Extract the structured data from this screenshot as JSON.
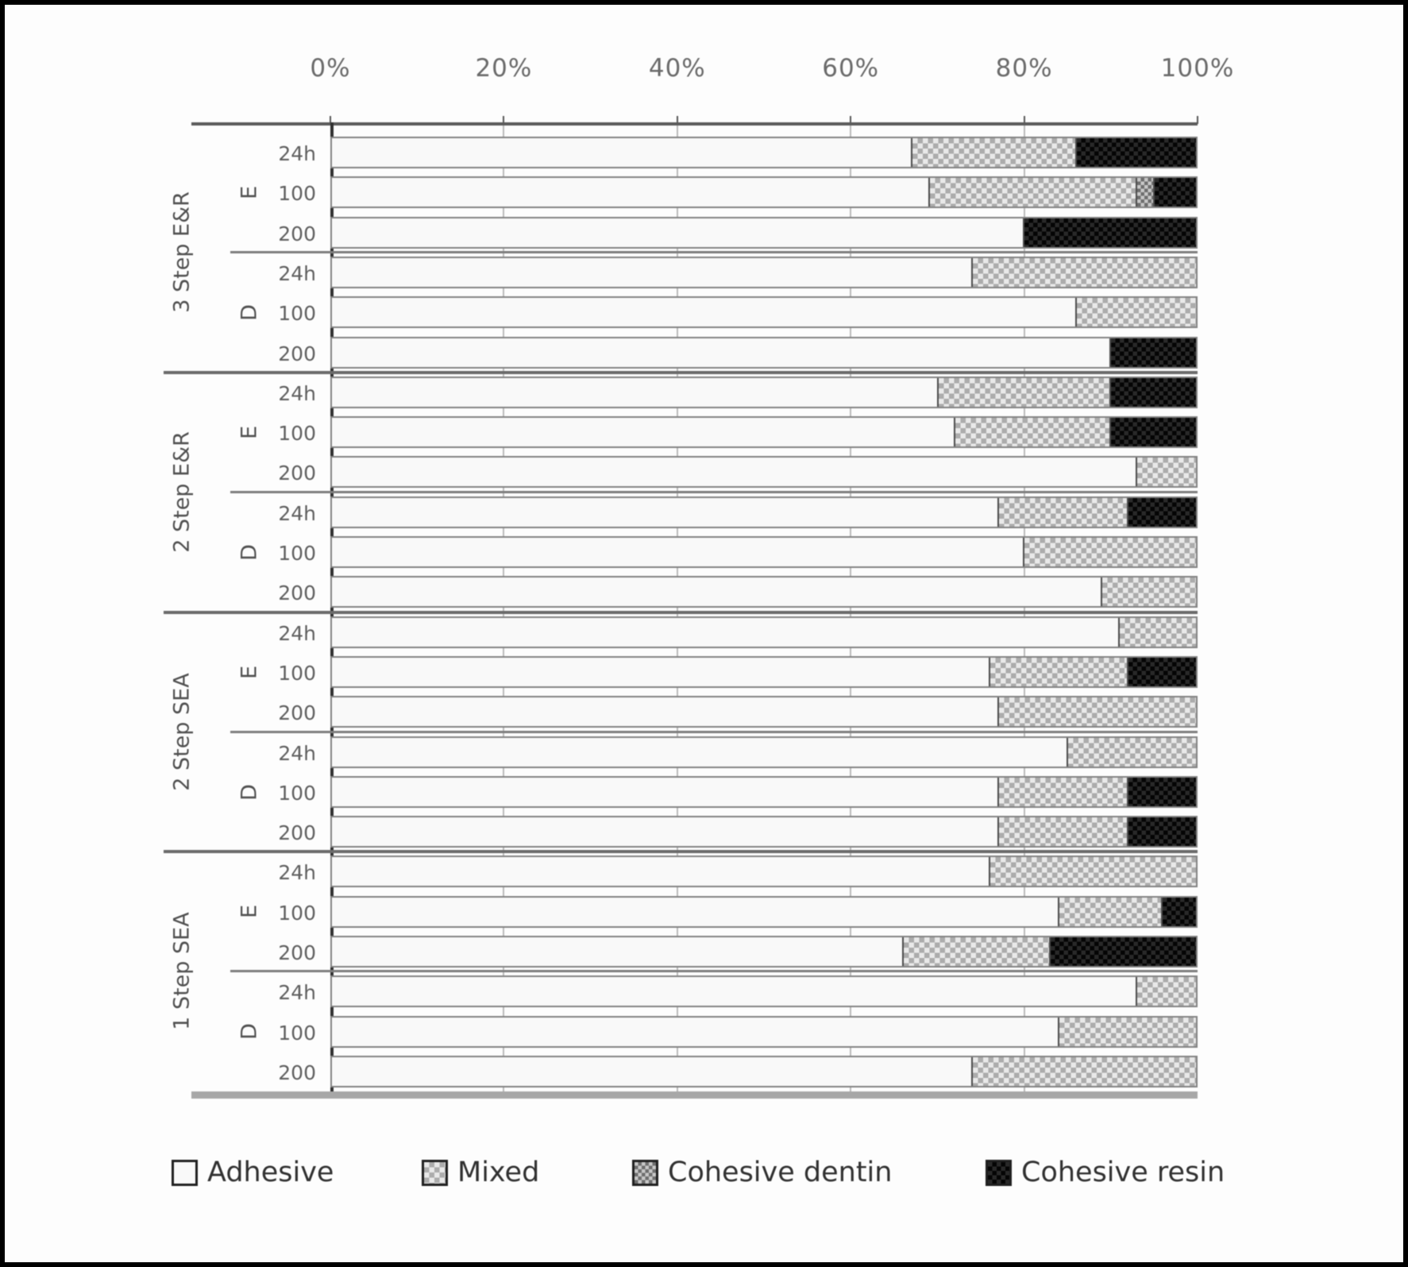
{
  "axis": {
    "ticks": [
      "0%",
      "20%",
      "40%",
      "60%",
      "80%",
      "100%"
    ],
    "min": 0,
    "max": 100,
    "position": "top"
  },
  "legend": [
    {
      "label": "Adhesive",
      "pattern": "adhesive"
    },
    {
      "label": "Mixed",
      "pattern": "mixed"
    },
    {
      "label": "Cohesive dentin",
      "pattern": "dentin"
    },
    {
      "label": "Cohesive resin",
      "pattern": "resin"
    }
  ],
  "colors": {
    "adhesive": "#fdfdfd",
    "mixed": "#adadad",
    "dentin": "#6f6f6f",
    "resin": "#0a0a0a",
    "frame": "#000000",
    "axis_line": "#2e2e2e",
    "divider": "#7e7e7e"
  },
  "chart_data": {
    "type": "bar",
    "orientation": "horizontal",
    "stacked_percent": true,
    "grid": "vertical 20/40/60/80",
    "legend_position": "bottom",
    "series": [
      "Adhesive",
      "Mixed",
      "Cohesive dentin",
      "Cohesive resin"
    ],
    "condition_labels": [
      "24h",
      "100",
      "200"
    ],
    "outer_groups": [
      {
        "label": "3 Step E&R",
        "inner_groups": [
          {
            "label": "E",
            "bars": [
              {
                "condition": "24h",
                "values": [
                  67,
                  19,
                  0,
                  14
                ]
              },
              {
                "condition": "100",
                "values": [
                  69,
                  24,
                  2,
                  5
                ]
              },
              {
                "condition": "200",
                "values": [
                  80,
                  0,
                  0,
                  20
                ]
              }
            ]
          },
          {
            "label": "D",
            "bars": [
              {
                "condition": "24h",
                "values": [
                  74,
                  26,
                  0,
                  0
                ]
              },
              {
                "condition": "100",
                "values": [
                  86,
                  14,
                  0,
                  0
                ]
              },
              {
                "condition": "200",
                "values": [
                  90,
                  0,
                  0,
                  10
                ]
              }
            ]
          }
        ]
      },
      {
        "label": "2 Step E&R",
        "inner_groups": [
          {
            "label": "E",
            "bars": [
              {
                "condition": "24h",
                "values": [
                  70,
                  20,
                  0,
                  10
                ]
              },
              {
                "condition": "100",
                "values": [
                  72,
                  18,
                  0,
                  10
                ]
              },
              {
                "condition": "200",
                "values": [
                  93,
                  7,
                  0,
                  0
                ]
              }
            ]
          },
          {
            "label": "D",
            "bars": [
              {
                "condition": "24h",
                "values": [
                  77,
                  15,
                  0,
                  8
                ]
              },
              {
                "condition": "100",
                "values": [
                  80,
                  20,
                  0,
                  0
                ]
              },
              {
                "condition": "200",
                "values": [
                  89,
                  11,
                  0,
                  0
                ]
              }
            ]
          }
        ]
      },
      {
        "label": "2 Step SEA",
        "inner_groups": [
          {
            "label": "E",
            "bars": [
              {
                "condition": "24h",
                "values": [
                  91,
                  9,
                  0,
                  0
                ]
              },
              {
                "condition": "100",
                "values": [
                  76,
                  16,
                  0,
                  8
                ]
              },
              {
                "condition": "200",
                "values": [
                  77,
                  23,
                  0,
                  0
                ]
              }
            ]
          },
          {
            "label": "D",
            "bars": [
              {
                "condition": "24h",
                "values": [
                  85,
                  15,
                  0,
                  0
                ]
              },
              {
                "condition": "100",
                "values": [
                  77,
                  15,
                  0,
                  8
                ]
              },
              {
                "condition": "200",
                "values": [
                  77,
                  15,
                  0,
                  8
                ]
              }
            ]
          }
        ]
      },
      {
        "label": "1 Step SEA",
        "inner_groups": [
          {
            "label": "E",
            "bars": [
              {
                "condition": "24h",
                "values": [
                  76,
                  24,
                  0,
                  0
                ]
              },
              {
                "condition": "100",
                "values": [
                  84,
                  12,
                  0,
                  4
                ]
              },
              {
                "condition": "200",
                "values": [
                  66,
                  17,
                  0,
                  17
                ]
              }
            ]
          },
          {
            "label": "D",
            "bars": [
              {
                "condition": "24h",
                "values": [
                  93,
                  7,
                  0,
                  0
                ]
              },
              {
                "condition": "100",
                "values": [
                  84,
                  16,
                  0,
                  0
                ]
              },
              {
                "condition": "200",
                "values": [
                  74,
                  26,
                  0,
                  0
                ]
              }
            ]
          }
        ]
      }
    ]
  }
}
